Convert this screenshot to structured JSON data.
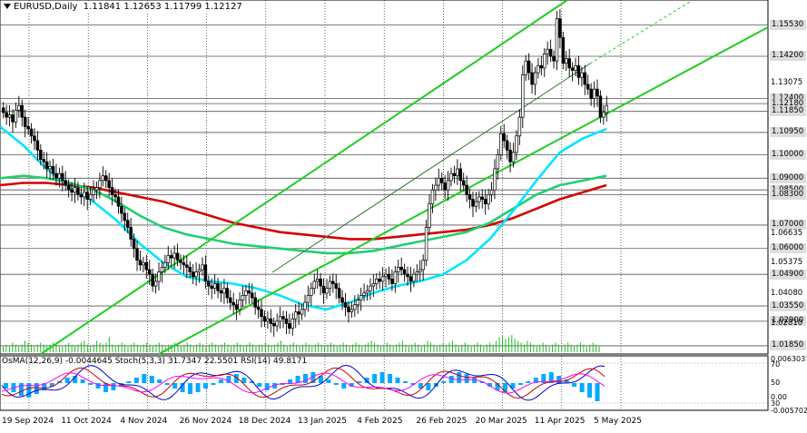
{
  "header": {
    "symbol_tf": "EURUSD,Daily",
    "ohlc": "1.11841 1.12653 1.11799 1.12127"
  },
  "indicators_header": "OsMA(12,26,9) -0.0044645 Stoch(5,3,3) 31.7347 22.5501 RSI(14) 49.8171",
  "colors": {
    "ma_fast": "#00e5ff",
    "ma_mid": "#20d070",
    "ma_slow": "#d40000",
    "channel": "#22cc22",
    "candle": "#000000",
    "volume": "#22bb22",
    "osma": "#00aaff",
    "stoch_main": "#0000cc",
    "stoch_signal": "#cc0000",
    "rsi": "#ff00ff"
  },
  "price_axis": {
    "tagged": [
      {
        "label": "1.15530",
        "bg": "#dddddd",
        "fg": "#000000"
      },
      {
        "label": "1.14200",
        "bg": "#dddddd",
        "fg": "#000000"
      },
      {
        "label": "1.12400",
        "bg": "#dddddd",
        "fg": "#000000"
      },
      {
        "label": "1.12180",
        "bg": "#dddddd",
        "fg": "#000000"
      },
      {
        "label": "1.11850",
        "bg": "#dddddd",
        "fg": "#000000"
      },
      {
        "label": "1.10950",
        "bg": "#dddddd",
        "fg": "#000000"
      },
      {
        "label": "1.10000",
        "bg": "#dddddd",
        "fg": "#000000"
      },
      {
        "label": "1.09000",
        "bg": "#dddddd",
        "fg": "#000000"
      },
      {
        "label": "1.08500",
        "bg": "#dddddd",
        "fg": "#000000"
      },
      {
        "label": "1.08300",
        "bg": "#dddddd",
        "fg": "#000000"
      },
      {
        "label": "1.07000",
        "bg": "#dddddd",
        "fg": "#000000"
      },
      {
        "label": "1.06000",
        "bg": "#dddddd",
        "fg": "#000000"
      },
      {
        "label": "1.04900",
        "bg": "#dddddd",
        "fg": "#000000"
      },
      {
        "label": "1.03550",
        "bg": "#dddddd",
        "fg": "#000000"
      },
      {
        "label": "1.02900",
        "bg": "#dddddd",
        "fg": "#000000"
      },
      {
        "label": "1.01850",
        "bg": "#dddddd",
        "fg": "#000000"
      }
    ],
    "plain": [
      "1.13075",
      "1.06635",
      "1.05375",
      "1.04080",
      "1.02810"
    ]
  },
  "indicator_axis": [
    "0.0063037",
    "70",
    "30",
    "0.00",
    "-0.0057024"
  ],
  "indicator_axis_plain": [
    "50"
  ],
  "x_axis": [
    "19 Sep 2024",
    "11 Oct 2024",
    "4 Nov 2024",
    "26 Nov 2024",
    "18 Dec 2024",
    "13 Jan 2025",
    "4 Feb 2025",
    "26 Feb 2025",
    "20 Mar 2025",
    "11 Apr 2025",
    "5 May 2025"
  ],
  "chart_data": {
    "type": "candlestick",
    "symbol": "EURUSD",
    "timeframe": "Daily",
    "ohlc_last": {
      "open": 1.11841,
      "high": 1.12653,
      "low": 1.11799,
      "close": 1.12127
    },
    "ylim": [
      1.015,
      1.166
    ],
    "closes": [
      1.118,
      1.116,
      1.117,
      1.114,
      1.119,
      1.121,
      1.116,
      1.112,
      1.111,
      1.108,
      1.106,
      1.102,
      1.098,
      1.097,
      1.094,
      1.095,
      1.092,
      1.09,
      1.092,
      1.089,
      1.087,
      1.085,
      1.084,
      1.086,
      1.083,
      1.082,
      1.084,
      1.081,
      1.083,
      1.085,
      1.086,
      1.089,
      1.091,
      1.089,
      1.086,
      1.083,
      1.082,
      1.078,
      1.075,
      1.072,
      1.069,
      1.064,
      1.06,
      1.055,
      1.053,
      1.054,
      1.051,
      1.049,
      1.044,
      1.046,
      1.05,
      1.052,
      1.054,
      1.057,
      1.056,
      1.058,
      1.055,
      1.054,
      1.053,
      1.052,
      1.05,
      1.048,
      1.05,
      1.051,
      1.053,
      1.046,
      1.044,
      1.043,
      1.045,
      1.042,
      1.041,
      1.043,
      1.039,
      1.037,
      1.036,
      1.034,
      1.038,
      1.04,
      1.042,
      1.041,
      1.039,
      1.035,
      1.034,
      1.031,
      1.029,
      1.03,
      1.028,
      1.027,
      1.029,
      1.031,
      1.03,
      1.028,
      1.026,
      1.03,
      1.033,
      1.032,
      1.034,
      1.037,
      1.04,
      1.043,
      1.046,
      1.047,
      1.044,
      1.041,
      1.043,
      1.046,
      1.045,
      1.043,
      1.039,
      1.037,
      1.035,
      1.033,
      1.034,
      1.036,
      1.038,
      1.04,
      1.041,
      1.042,
      1.044,
      1.045,
      1.047,
      1.046,
      1.048,
      1.049,
      1.047,
      1.045,
      1.05,
      1.052,
      1.051,
      1.049,
      1.048,
      1.046,
      1.049,
      1.05,
      1.051,
      1.055,
      1.069,
      1.079,
      1.085,
      1.087,
      1.09,
      1.088,
      1.085,
      1.089,
      1.092,
      1.091,
      1.094,
      1.089,
      1.087,
      1.083,
      1.081,
      1.078,
      1.08,
      1.082,
      1.081,
      1.079,
      1.083,
      1.085,
      1.094,
      1.1,
      1.109,
      1.106,
      1.102,
      1.097,
      1.101,
      1.108,
      1.116,
      1.134,
      1.14,
      1.135,
      1.13,
      1.135,
      1.138,
      1.137,
      1.143,
      1.145,
      1.142,
      1.14,
      1.158,
      1.15,
      1.139,
      1.141,
      1.137,
      1.136,
      1.138,
      1.133,
      1.135,
      1.13,
      1.128,
      1.124,
      1.128,
      1.125,
      1.116,
      1.118,
      1.121
    ],
    "series": [
      {
        "name": "MA fast",
        "type": "line",
        "values": [
          1.112,
          1.104,
          1.094,
          1.086,
          1.08,
          1.072,
          1.062,
          1.054,
          1.048,
          1.046,
          1.045,
          1.043,
          1.04,
          1.036,
          1.034,
          1.037,
          1.041,
          1.044,
          1.046,
          1.049,
          1.055,
          1.064,
          1.076,
          1.089,
          1.101,
          1.107,
          1.111
        ]
      },
      {
        "name": "MA mid",
        "type": "line",
        "values": [
          1.09,
          1.091,
          1.09,
          1.088,
          1.085,
          1.08,
          1.074,
          1.069,
          1.066,
          1.064,
          1.062,
          1.061,
          1.06,
          1.059,
          1.058,
          1.058,
          1.059,
          1.061,
          1.063,
          1.065,
          1.067,
          1.071,
          1.077,
          1.083,
          1.087,
          1.089,
          1.091
        ]
      },
      {
        "name": "MA slow",
        "type": "line",
        "values": [
          1.087,
          1.088,
          1.088,
          1.087,
          1.086,
          1.084,
          1.082,
          1.08,
          1.077,
          1.074,
          1.071,
          1.069,
          1.067,
          1.066,
          1.065,
          1.064,
          1.064,
          1.065,
          1.066,
          1.067,
          1.068,
          1.07,
          1.073,
          1.077,
          1.081,
          1.084,
          1.087
        ]
      }
    ],
    "volume": [
      3,
      4,
      3,
      5,
      4,
      3,
      4,
      6,
      5,
      4,
      3,
      4,
      5,
      4,
      3,
      4,
      5,
      4,
      3,
      3,
      4,
      5,
      4,
      3,
      4,
      5,
      6,
      4,
      3,
      4,
      6,
      5,
      4,
      5,
      8,
      4,
      3,
      4,
      5,
      4,
      3,
      4,
      5,
      4,
      3,
      4,
      5,
      4,
      3,
      4,
      5,
      4,
      3,
      4,
      4,
      5,
      4,
      3,
      4,
      5,
      4,
      3,
      4,
      5,
      4,
      3,
      4,
      5,
      4,
      3,
      4,
      5,
      4,
      3,
      4,
      5,
      4,
      3,
      4,
      5,
      4,
      3,
      4,
      4,
      5,
      4,
      3,
      4,
      5,
      6,
      4,
      3,
      4,
      5,
      4,
      3,
      4,
      5,
      4,
      3,
      4,
      5,
      4,
      3,
      4,
      5,
      4,
      3,
      4,
      5,
      4,
      3,
      4,
      5,
      4,
      3,
      4,
      5,
      6,
      5,
      4,
      3,
      4,
      5,
      4,
      3,
      4,
      5,
      6,
      4,
      3,
      4,
      5,
      4,
      3,
      4,
      6,
      5,
      4,
      3,
      4,
      5,
      4,
      5,
      6,
      4,
      3,
      4,
      5,
      4,
      3,
      4,
      5,
      4,
      3,
      4,
      5,
      4,
      6,
      8,
      9,
      7,
      8,
      9,
      7,
      6,
      5,
      4,
      6,
      5,
      4,
      3,
      4,
      5,
      4,
      3,
      4,
      5,
      4,
      3,
      4,
      5,
      4,
      3,
      4,
      5,
      4,
      3,
      4,
      5,
      4,
      3
    ],
    "osma": [
      -0.3,
      -0.5,
      -0.7,
      -0.8,
      -0.6,
      -0.4,
      -0.2,
      0.1,
      0.3,
      0.4,
      0.2,
      -0.1,
      -0.3,
      -0.5,
      -0.4,
      -0.2,
      0.1,
      0.3,
      0.5,
      0.4,
      0.2,
      -0.1,
      -0.3,
      -0.5,
      -0.6,
      -0.5,
      -0.3,
      -0.1,
      0.2,
      0.4,
      0.5,
      0.3,
      0.1,
      -0.2,
      -0.4,
      -0.3,
      -0.1,
      0.2,
      0.4,
      0.5,
      0.6,
      0.4,
      0.2,
      -0.1,
      -0.3,
      -0.2,
      0.1,
      0.3,
      0.5,
      0.6,
      0.5,
      0.3,
      0.1,
      -0.1,
      -0.3,
      -0.4,
      -0.2,
      0.1,
      0.4,
      0.6,
      0.5,
      0.3,
      0.1,
      -0.2,
      -0.4,
      -0.5,
      -0.3,
      -0.1,
      0.1,
      0.3,
      0.5,
      0.6,
      0.4,
      0.2,
      -0.2,
      -0.5,
      -0.8,
      -1.0
    ],
    "annotations": [
      "Rising green parallel channel",
      "Dashed upper channel extension"
    ]
  }
}
